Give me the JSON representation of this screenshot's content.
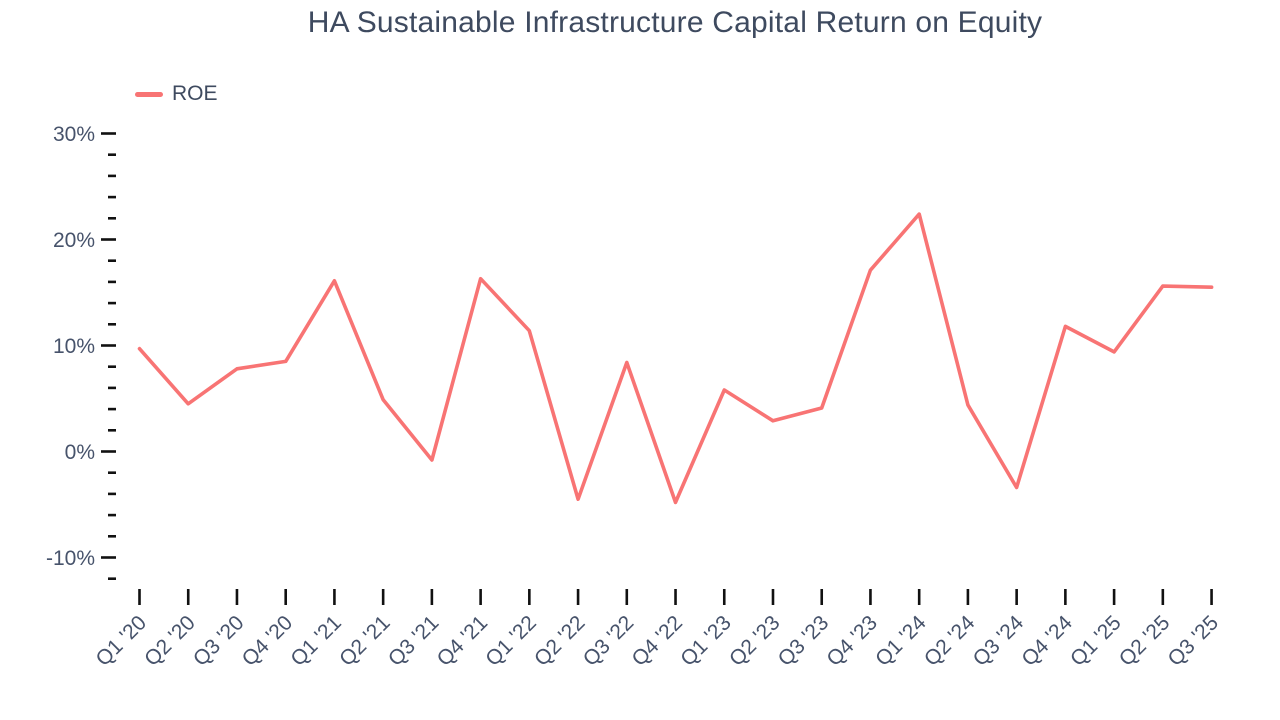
{
  "chart_data": {
    "type": "line",
    "title": "HA Sustainable Infrastructure Capital Return on Equity",
    "xlabel": "",
    "ylabel": "",
    "grid": false,
    "categories": [
      "Q1 '20",
      "Q2 '20",
      "Q3 '20",
      "Q4 '20",
      "Q1 '21",
      "Q2 '21",
      "Q3 '21",
      "Q4 '21",
      "Q1 '22",
      "Q2 '22",
      "Q3 '22",
      "Q4 '22",
      "Q1 '23",
      "Q2 '23",
      "Q3 '23",
      "Q4 '23",
      "Q1 '24",
      "Q2 '24",
      "Q3 '24",
      "Q4 '24",
      "Q1 '25",
      "Q2 '25",
      "Q3 '25"
    ],
    "series": [
      {
        "name": "ROE",
        "color": "#f87474",
        "values": [
          9.7,
          4.5,
          7.8,
          8.5,
          16.1,
          4.9,
          -0.8,
          16.3,
          11.4,
          -4.5,
          8.4,
          -4.8,
          5.8,
          2.9,
          4.1,
          17.1,
          22.4,
          4.4,
          -3.4,
          11.8,
          9.4,
          15.6,
          15.5
        ]
      }
    ],
    "y_axis": {
      "min": -12,
      "max": 30,
      "major_ticks": [
        30,
        20,
        10,
        0,
        -10
      ],
      "minor_step": 2,
      "suffix": "%"
    },
    "legend": {
      "position": "top-left",
      "entries": [
        {
          "label": "ROE",
          "color": "#f87474"
        }
      ]
    },
    "colors": {
      "tick": "#111111",
      "axis_label": "#47536b",
      "title": "#3e4a5f",
      "background": "#ffffff"
    }
  }
}
